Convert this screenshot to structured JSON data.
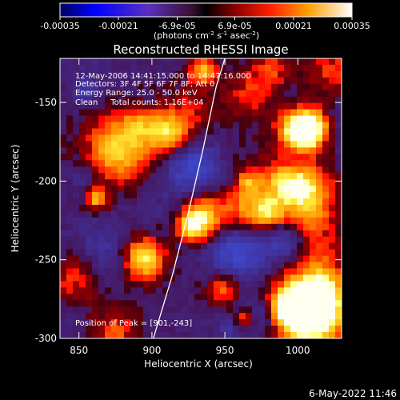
{
  "colorbar": {
    "tick_labels": [
      "-0.00035",
      "-0.00021",
      "-6.9e-05",
      "6.9e-05",
      "0.00021",
      "0.00035"
    ],
    "tick_values": [
      -0.00035,
      -0.00021,
      -6.9e-05,
      6.9e-05,
      0.00021,
      0.00035
    ],
    "range": [
      -0.00035,
      0.00035
    ],
    "units_prefix": "(photons cm",
    "units_exp1": "-2",
    "units_mid1": " s",
    "units_exp2": "-1",
    "units_mid2": " asec",
    "units_exp3": "-2",
    "units_suffix": ")"
  },
  "chart_data": {
    "type": "heatmap",
    "title": "Reconstructed RHESSI Image",
    "xlabel": "Heliocentric X (arcsec)",
    "ylabel": "Heliocentric Y (arcsec)",
    "xlim": [
      837,
      1030
    ],
    "ylim": [
      -300,
      -122
    ],
    "x_ticks": [
      850,
      900,
      950,
      1000
    ],
    "x_tick_labels": [
      "850",
      "900",
      "950",
      "1000"
    ],
    "y_ticks": [
      -150,
      -200,
      -250,
      -300
    ],
    "y_tick_labels": [
      "-150",
      "-200",
      "-250",
      "-300"
    ],
    "annotations": [
      "12-May-2006 14:41:15.000 to 14:47:16.000",
      "Detectors: 3F 4F 5F 6F 7F 8F; Att 0",
      "Energy Range: 25.0 - 50.0 keV",
      "Clean     Total counts: 1.16E+04"
    ],
    "peak_label": "Position of Peak = [901,-243]",
    "peak": [
      901,
      -243
    ],
    "limb_curve": [
      [
        901,
        -300
      ],
      [
        914,
        -260
      ],
      [
        925,
        -220
      ],
      [
        935,
        -180
      ],
      [
        944,
        -140
      ],
      [
        950,
        -122
      ]
    ],
    "colors": {
      "limb": "#ffffff",
      "background": "#000000"
    }
  },
  "footer": {
    "timestamp": "6-May-2022 11:46"
  }
}
